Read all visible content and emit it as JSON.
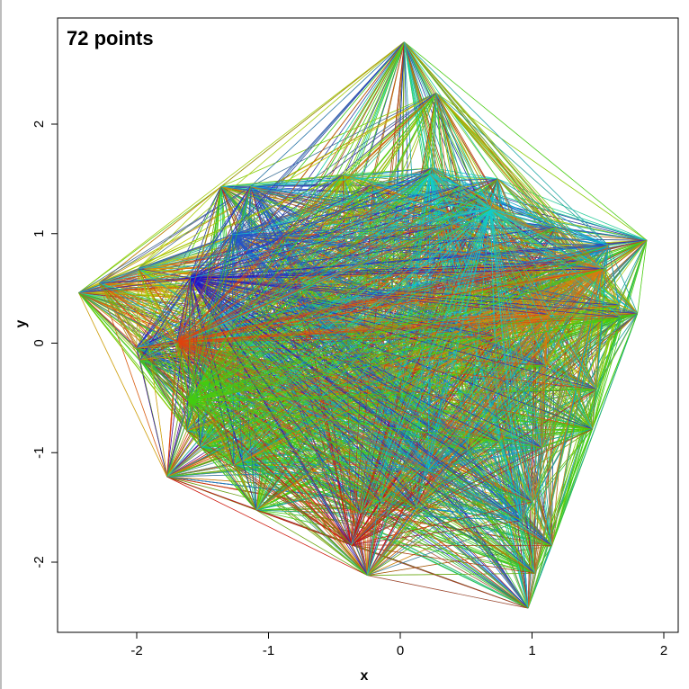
{
  "chart_data": {
    "type": "network",
    "title": "72 points",
    "xlabel": "x",
    "ylabel": "y",
    "xlim": [
      -2.6,
      2.05
    ],
    "ylim": [
      -2.65,
      2.8
    ],
    "xticks": [
      -2,
      -1,
      0,
      1,
      2
    ],
    "yticks": [
      -2,
      -1,
      0,
      1,
      2
    ],
    "xtick_labels": [
      "-2",
      "-1",
      "0",
      "1",
      "2"
    ],
    "ytick_labels": [
      "-2",
      "-1",
      "0",
      "1",
      "2"
    ],
    "grid": false,
    "hub_nodes": [
      {
        "x": 0.03,
        "y": 2.75,
        "color": "#33cc33"
      },
      {
        "x": 1.87,
        "y": 0.94,
        "color": "#55cc11"
      },
      {
        "x": 1.8,
        "y": 0.27,
        "color": "#44cc11"
      },
      {
        "x": 1.49,
        "y": -0.42,
        "color": "#99cc00"
      },
      {
        "x": 1.15,
        "y": -1.85,
        "color": "#33cc22"
      },
      {
        "x": 0.97,
        "y": -2.42,
        "color": "#1199cc"
      },
      {
        "x": -0.25,
        "y": -2.12,
        "color": "#cc3300"
      },
      {
        "x": -1.77,
        "y": -1.22,
        "color": "#cc1111"
      },
      {
        "x": -1.62,
        "y": -0.8,
        "color": "#99cc11"
      },
      {
        "x": -1.2,
        "y": -1.08,
        "color": "#22cccc"
      },
      {
        "x": -2.44,
        "y": 0.46,
        "color": "#cccc00"
      },
      {
        "x": -1.5,
        "y": 0.13,
        "color": "#3311cc"
      },
      {
        "x": -1.7,
        "y": 0.0,
        "color": "#dd5511"
      },
      {
        "x": -1.36,
        "y": 1.43,
        "color": "#44cc11"
      },
      {
        "x": 0.46,
        "y": 1.44,
        "color": "#2211cc"
      },
      {
        "x": 0.74,
        "y": 1.5,
        "color": "#22cccc"
      },
      {
        "x": 1.18,
        "y": 1.06,
        "color": "#3333cc"
      },
      {
        "x": 0.24,
        "y": 1.6,
        "color": "#11cccc"
      },
      {
        "x": -0.21,
        "y": 1.45,
        "color": "#dd6611"
      },
      {
        "x": -0.77,
        "y": 0.6,
        "color": "#3311cc"
      },
      {
        "x": -0.62,
        "y": 0.2,
        "color": "#3322cc"
      },
      {
        "x": 0.12,
        "y": -1.5,
        "color": "#2211cc"
      },
      {
        "x": -0.15,
        "y": -1.45,
        "color": "#1188cc"
      },
      {
        "x": -0.3,
        "y": -1.55,
        "color": "#dd4411"
      },
      {
        "x": 1.0,
        "y": -1.45,
        "color": "#cc9900"
      },
      {
        "x": 1.1,
        "y": -0.2,
        "color": "#22cccc"
      },
      {
        "x": 0.4,
        "y": 0.1,
        "color": "#11cccc"
      },
      {
        "x": -0.1,
        "y": -0.5,
        "color": "#1111cc"
      },
      {
        "x": 0.75,
        "y": -0.9,
        "color": "#cccc11"
      },
      {
        "x": -0.6,
        "y": -0.5,
        "color": "#dd3311"
      }
    ],
    "random_node_count": 42,
    "random_node_colors": [
      "#cc1111",
      "#dd4411",
      "#dd7711",
      "#cccc00",
      "#99cc00",
      "#44cc11",
      "#22cc55",
      "#11cccc",
      "#1199cc",
      "#2255cc",
      "#2211cc"
    ]
  }
}
